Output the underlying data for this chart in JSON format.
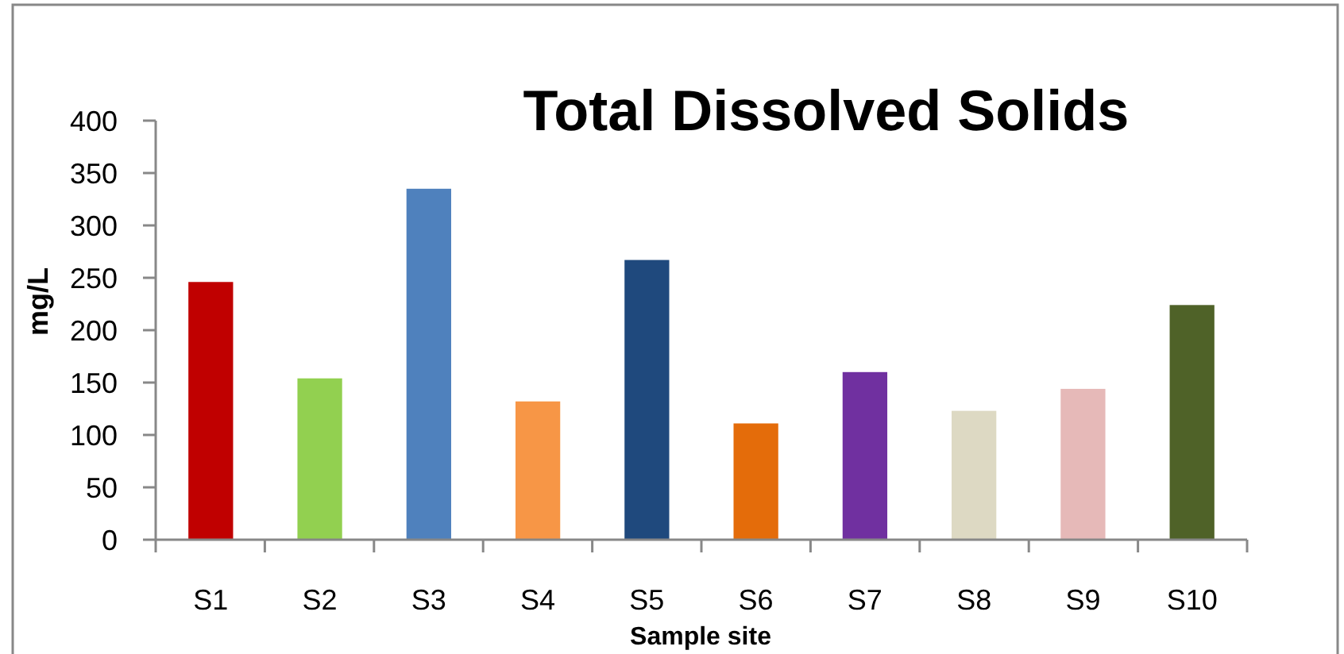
{
  "chart_data": {
    "type": "bar",
    "title": "Total Dissolved Solids",
    "xlabel": "Sample site",
    "ylabel": "mg/L",
    "categories": [
      "S1",
      "S2",
      "S3",
      "S4",
      "S5",
      "S6",
      "S7",
      "S8",
      "S9",
      "S10"
    ],
    "values": [
      246,
      154,
      335,
      132,
      267,
      111,
      160,
      123,
      144,
      224
    ],
    "colors": [
      "#c00000",
      "#92d050",
      "#4f81bd",
      "#f79646",
      "#1f497d",
      "#e46c0a",
      "#7030a0",
      "#ddd9c3",
      "#e6b9b8",
      "#4f6228"
    ],
    "ylim": [
      0,
      400
    ],
    "yticks": [
      0,
      50,
      100,
      150,
      200,
      250,
      300,
      350,
      400
    ],
    "grid": false
  }
}
